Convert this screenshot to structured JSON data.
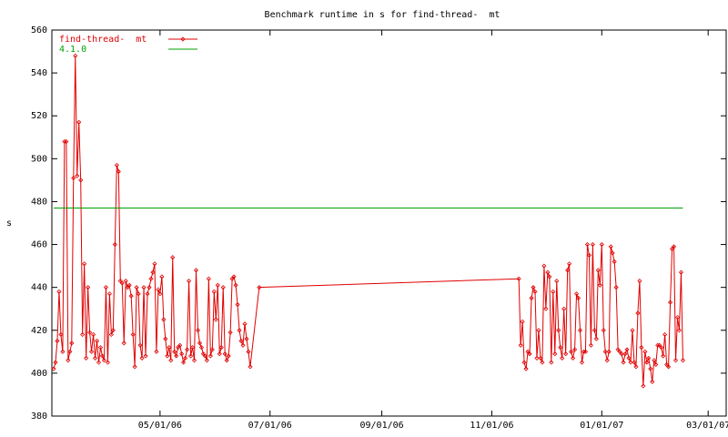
{
  "chart_data": {
    "type": "line",
    "title": "Benchmark runtime in s for find-thread-  mt",
    "ylabel": "s",
    "ylim": [
      380,
      560
    ],
    "yticks": [
      380,
      400,
      420,
      440,
      460,
      480,
      500,
      520,
      540,
      560
    ],
    "xlim": [
      "2006-03-02",
      "2007-03-11"
    ],
    "xticks": [
      {
        "value": "2006-05-01",
        "label": "05/01/06"
      },
      {
        "value": "2006-07-01",
        "label": "07/01/06"
      },
      {
        "value": "2006-09-01",
        "label": "09/01/06"
      },
      {
        "value": "2006-11-01",
        "label": "11/01/06"
      },
      {
        "value": "2007-01-01",
        "label": "01/01/07"
      },
      {
        "value": "2007-03-01",
        "label": "03/01/07"
      }
    ],
    "grid": false,
    "legend": "top-left",
    "series": [
      {
        "name": "find-thread-  mt",
        "color": "#e00000",
        "markers": true,
        "x": [
          "2006-03-03",
          "2006-03-04",
          "2006-03-05",
          "2006-03-06",
          "2006-03-07",
          "2006-03-08",
          "2006-03-09",
          "2006-03-10",
          "2006-03-11",
          "2006-03-12",
          "2006-03-13",
          "2006-03-14",
          "2006-03-15",
          "2006-03-16",
          "2006-03-17",
          "2006-03-18",
          "2006-03-19",
          "2006-03-20",
          "2006-03-21",
          "2006-03-22",
          "2006-03-23",
          "2006-03-24",
          "2006-03-25",
          "2006-03-26",
          "2006-03-27",
          "2006-03-28",
          "2006-03-29",
          "2006-03-30",
          "2006-03-31",
          "2006-04-01",
          "2006-04-02",
          "2006-04-03",
          "2006-04-04",
          "2006-04-05",
          "2006-04-06",
          "2006-04-07",
          "2006-04-08",
          "2006-04-09",
          "2006-04-10",
          "2006-04-11",
          "2006-04-12",
          "2006-04-13",
          "2006-04-14",
          "2006-04-15",
          "2006-04-16",
          "2006-04-17",
          "2006-04-18",
          "2006-04-19",
          "2006-04-20",
          "2006-04-21",
          "2006-04-22",
          "2006-04-23",
          "2006-04-24",
          "2006-04-25",
          "2006-04-26",
          "2006-04-27",
          "2006-04-28",
          "2006-04-29",
          "2006-04-30",
          "2006-05-01",
          "2006-05-02",
          "2006-05-03",
          "2006-05-04",
          "2006-05-05",
          "2006-05-06",
          "2006-05-07",
          "2006-05-08",
          "2006-05-09",
          "2006-05-10",
          "2006-05-11",
          "2006-05-12",
          "2006-05-13",
          "2006-05-14",
          "2006-05-15",
          "2006-05-16",
          "2006-05-17",
          "2006-05-18",
          "2006-05-19",
          "2006-05-20",
          "2006-05-21",
          "2006-05-22",
          "2006-05-23",
          "2006-05-24",
          "2006-05-25",
          "2006-05-26",
          "2006-05-27",
          "2006-05-28",
          "2006-05-29",
          "2006-05-30",
          "2006-05-31",
          "2006-06-01",
          "2006-06-02",
          "2006-06-03",
          "2006-06-04",
          "2006-06-05",
          "2006-06-06",
          "2006-06-07",
          "2006-06-08",
          "2006-06-09",
          "2006-06-10",
          "2006-06-11",
          "2006-06-12",
          "2006-06-13",
          "2006-06-14",
          "2006-06-15",
          "2006-06-16",
          "2006-06-17",
          "2006-06-18",
          "2006-06-19",
          "2006-06-20",
          "2006-06-25",
          "2006-11-16",
          "2006-11-17",
          "2006-11-18",
          "2006-11-19",
          "2006-11-20",
          "2006-11-21",
          "2006-11-22",
          "2006-11-23",
          "2006-11-24",
          "2006-11-25",
          "2006-11-26",
          "2006-11-27",
          "2006-11-28",
          "2006-11-29",
          "2006-11-30",
          "2006-12-01",
          "2006-12-02",
          "2006-12-03",
          "2006-12-04",
          "2006-12-05",
          "2006-12-06",
          "2006-12-07",
          "2006-12-08",
          "2006-12-09",
          "2006-12-10",
          "2006-12-11",
          "2006-12-12",
          "2006-12-13",
          "2006-12-14",
          "2006-12-15",
          "2006-12-16",
          "2006-12-17",
          "2006-12-18",
          "2006-12-19",
          "2006-12-20",
          "2006-12-21",
          "2006-12-22",
          "2006-12-23",
          "2006-12-24",
          "2006-12-25",
          "2006-12-26",
          "2006-12-27",
          "2006-12-28",
          "2006-12-29",
          "2006-12-30",
          "2006-12-31",
          "2007-01-01",
          "2007-01-02",
          "2007-01-03",
          "2007-01-04",
          "2007-01-05",
          "2007-01-06",
          "2007-01-07",
          "2007-01-08",
          "2007-01-09",
          "2007-01-10",
          "2007-01-11",
          "2007-01-12",
          "2007-01-13",
          "2007-01-14",
          "2007-01-15",
          "2007-01-16",
          "2007-01-17",
          "2007-01-18",
          "2007-01-19",
          "2007-01-20",
          "2007-01-21",
          "2007-01-22",
          "2007-01-23",
          "2007-01-24",
          "2007-01-25",
          "2007-01-26",
          "2007-01-27",
          "2007-01-28",
          "2007-01-29",
          "2007-01-30",
          "2007-01-31",
          "2007-02-01",
          "2007-02-02",
          "2007-02-03",
          "2007-02-04",
          "2007-02-05",
          "2007-02-06",
          "2007-02-07",
          "2007-02-08",
          "2007-02-09",
          "2007-02-10",
          "2007-02-11",
          "2007-02-12",
          "2007-02-13",
          "2007-02-14",
          "2007-02-15"
        ],
        "values": [
          402,
          405,
          415,
          438,
          418,
          410,
          508,
          508,
          406,
          410,
          414,
          491,
          548,
          492,
          517,
          490,
          418,
          451,
          407,
          440,
          419,
          410,
          418,
          407,
          415,
          405,
          412,
          408,
          406,
          440,
          405,
          437,
          418,
          420,
          460,
          497,
          494,
          443,
          442,
          414,
          443,
          440,
          441,
          436,
          418,
          403,
          440,
          437,
          413,
          407,
          440,
          408,
          437,
          440,
          444,
          447,
          451,
          410,
          439,
          437,
          445,
          425,
          416,
          408,
          412,
          406,
          454,
          410,
          408,
          412,
          413,
          409,
          405,
          407,
          411,
          443,
          408,
          412,
          406,
          448,
          420,
          414,
          412,
          409,
          408,
          406,
          444,
          408,
          411,
          438,
          425,
          441,
          409,
          412,
          440,
          409,
          406,
          408,
          419,
          444,
          445,
          441,
          432,
          420,
          415,
          413,
          423,
          416,
          410,
          403,
          440,
          444,
          413,
          424,
          405,
          402,
          410,
          409,
          435,
          440,
          438,
          407,
          420,
          407,
          405,
          450,
          430,
          447,
          445,
          405,
          438,
          409,
          443,
          420,
          412,
          407,
          430,
          409,
          448,
          451,
          410,
          407,
          411,
          437,
          435,
          420,
          405,
          410,
          410,
          460,
          455,
          413,
          460,
          420,
          416,
          448,
          441,
          460,
          420,
          410,
          406,
          410,
          459,
          456,
          452,
          440,
          411,
          410,
          409,
          405,
          409,
          411,
          407,
          405,
          420,
          405,
          403,
          428,
          443,
          412,
          394,
          410,
          405,
          407,
          402,
          396,
          406,
          404,
          413,
          413,
          412,
          408,
          418,
          404,
          403,
          433,
          458,
          459,
          406,
          426,
          420,
          447,
          406
        ]
      },
      {
        "name": "4.1.0",
        "color": "#00a000",
        "markers": false,
        "x": [
          "2006-03-03",
          "2007-02-15"
        ],
        "values": [
          477,
          477
        ]
      }
    ]
  }
}
